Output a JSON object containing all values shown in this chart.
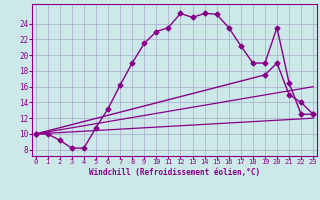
{
  "xlabel": "Windchill (Refroidissement éolien,°C)",
  "background_color": "#cce8e8",
  "grid_color": "#aaaacc",
  "line_color": "#880088",
  "x_ticks": [
    0,
    1,
    2,
    3,
    4,
    5,
    6,
    7,
    8,
    9,
    10,
    11,
    12,
    13,
    14,
    15,
    16,
    17,
    18,
    19,
    20,
    21,
    22,
    23
  ],
  "y_ticks": [
    8,
    10,
    12,
    14,
    16,
    18,
    20,
    22,
    24
  ],
  "xlim": [
    -0.3,
    23.3
  ],
  "ylim": [
    7.2,
    26.5
  ],
  "series": [
    {
      "x": [
        0,
        1,
        2,
        3,
        4,
        5,
        6,
        7,
        8,
        9,
        10,
        11,
        12,
        13,
        14,
        15,
        16,
        17,
        18,
        19,
        20,
        21,
        22,
        23
      ],
      "y": [
        10.0,
        10.0,
        9.2,
        8.2,
        8.2,
        10.8,
        13.2,
        16.2,
        19.0,
        21.5,
        23.0,
        23.5,
        25.3,
        24.8,
        25.3,
        25.2,
        23.5,
        21.2,
        19.0,
        19.0,
        23.5,
        16.5,
        12.5,
        12.5
      ],
      "marker": "D",
      "markersize": 2.5,
      "linewidth": 1.0
    },
    {
      "x": [
        0,
        23
      ],
      "y": [
        10.0,
        12.0
      ],
      "marker": null,
      "markersize": 0,
      "linewidth": 0.9
    },
    {
      "x": [
        0,
        23
      ],
      "y": [
        10.0,
        16.0
      ],
      "marker": null,
      "markersize": 0,
      "linewidth": 0.9
    },
    {
      "x": [
        0,
        19,
        20,
        21,
        22,
        23
      ],
      "y": [
        10.0,
        17.5,
        19.0,
        15.0,
        14.0,
        12.5
      ],
      "marker": "D",
      "markersize": 2.5,
      "linewidth": 1.0
    }
  ]
}
